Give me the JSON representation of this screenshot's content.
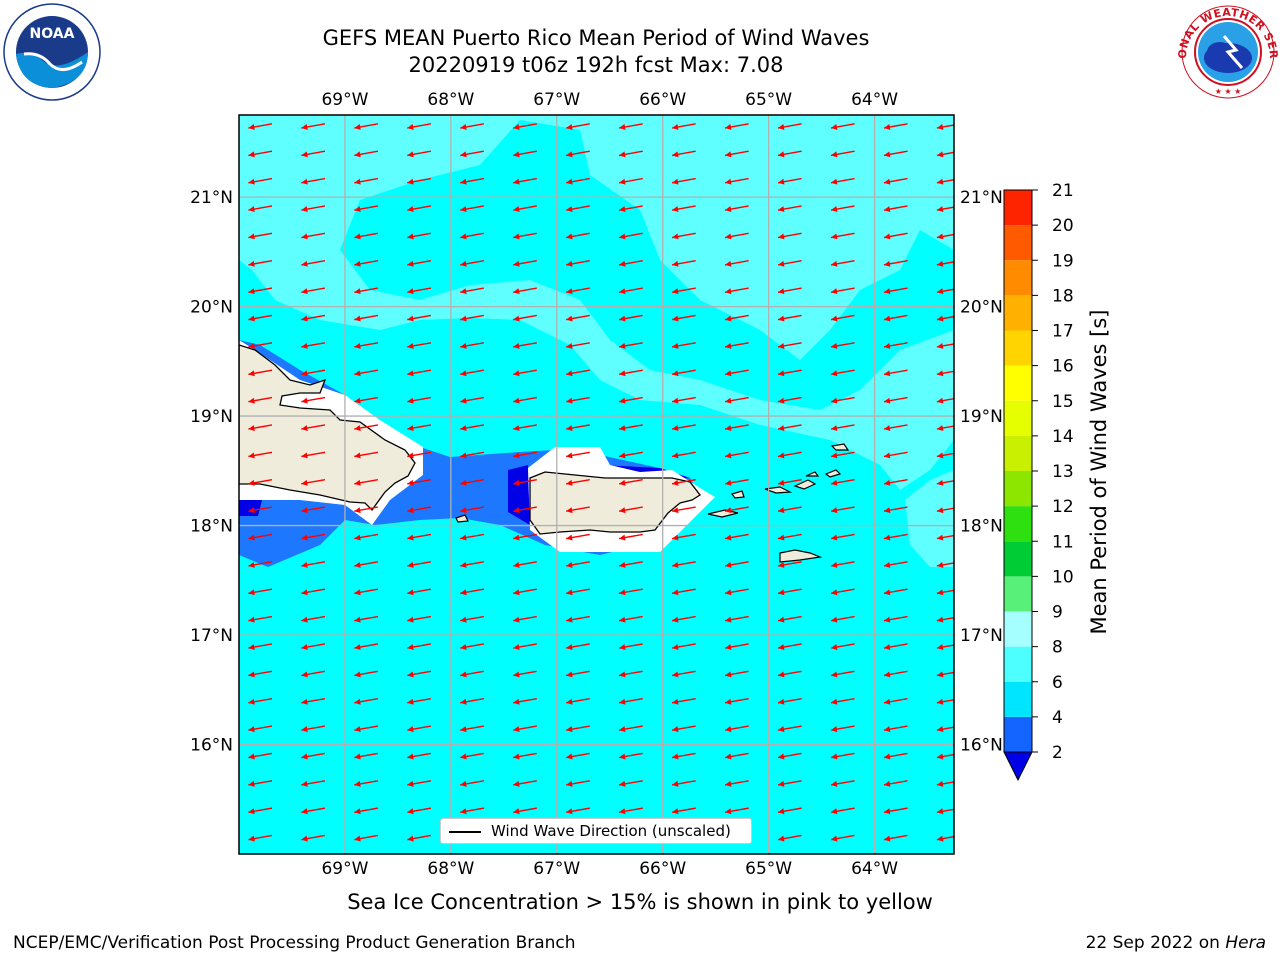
{
  "title_line1": "GEFS MEAN Puerto Rico Mean Period of Wind Waves",
  "title_line2": "20220919 t06z 192h fcst   Max: 7.08",
  "lon_ticks": [
    "69°W",
    "68°W",
    "67°W",
    "66°W",
    "65°W",
    "64°W"
  ],
  "lat_ticks": [
    "21°N",
    "20°N",
    "19°N",
    "18°N",
    "17°N",
    "16°N"
  ],
  "map_extent": {
    "lon_min": -70.0,
    "lon_max": -63.25,
    "lat_min": 15.0,
    "lat_max": 21.75
  },
  "legend_label": "Wind Wave Direction (unscaled)",
  "colorbar": {
    "label": "Mean Period of Wind Waves [s]",
    "ticks": [
      "2",
      "4",
      "6",
      "8",
      "9",
      "10",
      "11",
      "12",
      "13",
      "14",
      "15",
      "16",
      "17",
      "18",
      "19",
      "20",
      "21"
    ],
    "levels": [
      2,
      4,
      6,
      8,
      9,
      10,
      11,
      12,
      13,
      14,
      15,
      16,
      17,
      18,
      19,
      20,
      21
    ],
    "colors": [
      "#1464ff",
      "#00e5ff",
      "#4dffff",
      "#a6ffff",
      "#59f07a",
      "#00cd36",
      "#2ee00f",
      "#8ce600",
      "#c8f000",
      "#e6ff00",
      "#ffff00",
      "#ffd400",
      "#ffb000",
      "#ff8c00",
      "#ff5a00",
      "#ff2400",
      "#ff0000"
    ],
    "under_color": "#0000e6"
  },
  "field_colors": {
    "ocean_main": "#00ffff",
    "ocean_light": "#5fffff",
    "ocean_blue": "#1e78ff",
    "ocean_dark": "#0000e6",
    "land": "#f0ecdc",
    "arrow": "#ff0000"
  },
  "wave_direction_deg": 260,
  "footer_note": "Sea Ice Concentration > 15% is shown in pink to yellow",
  "footer_left": "NCEP/EMC/Verification Post Processing Product Generation Branch",
  "footer_date": "22 Sep 2022 on",
  "footer_host": "Hera",
  "noaa_logo_text": "NOAA",
  "nws_logo_text": "NATIONAL WEATHER SERVICE"
}
